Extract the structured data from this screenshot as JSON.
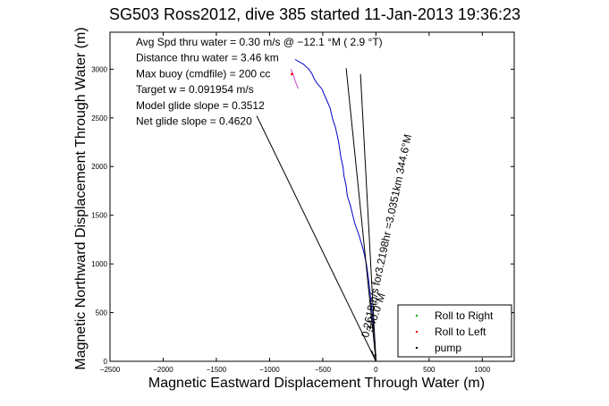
{
  "chart_data": {
    "type": "line",
    "title": "SG503 Ross2012, dive 385 started 11-Jan-2013 19:36:23",
    "xlabel": "Magnetic Eastward Displacement Through Water (m)",
    "ylabel": "Magnetic Northward Displacement Through Water (m)",
    "xlim": [
      -2500,
      1300
    ],
    "ylim": [
      0,
      3380
    ],
    "xticks": [
      -2500,
      -2000,
      -1500,
      -1000,
      -500,
      0,
      500,
      1000
    ],
    "yticks": [
      0,
      500,
      1000,
      1500,
      2000,
      2500,
      3000
    ],
    "grid": false,
    "legend_position": "bottom-right",
    "annotations": [
      "Avg Spd thru water =  0.30 m/s @ −12.1   °M (  2.9 °T)",
      "Distance thru water =  3.46 km",
      "Max buoy (cmdfile) = 200 cc",
      "Target w = 0.091954 m/s",
      "Model glide slope = 0.3512",
      "Net glide slope = 0.4620"
    ],
    "rotated_labels": [
      "0.2618m/s for3.2198hr =3.0351km   344.6°M",
      "340.0°M"
    ],
    "legend": [
      {
        "name": "Roll to Right",
        "color": "#00b000",
        "marker": "dot"
      },
      {
        "name": "Roll to Left",
        "color": "#ff0000",
        "marker": "dot"
      },
      {
        "name": "pump",
        "color": "#000000",
        "marker": "dot"
      }
    ],
    "series": [
      {
        "kind": "track",
        "color": "#0000cc",
        "x": [
          0,
          -2,
          -5,
          -10,
          -18,
          -28,
          -40,
          -55,
          -70,
          -90,
          -120,
          -160,
          -200,
          -240,
          -270,
          -280,
          -300,
          -310,
          -330,
          -350,
          -380,
          -410,
          -430,
          -470,
          -510,
          -550,
          -580,
          -600,
          -630,
          -680,
          -760
        ],
        "y": [
          0,
          50,
          100,
          200,
          300,
          420,
          550,
          700,
          850,
          1000,
          1150,
          1300,
          1420,
          1600,
          1700,
          1800,
          1900,
          2000,
          2100,
          2250,
          2400,
          2500,
          2600,
          2700,
          2800,
          2850,
          2900,
          2950,
          3000,
          3050,
          3100
        ]
      },
      {
        "kind": "track-pink",
        "color": "#cc44cc",
        "x": [
          -730,
          -760,
          -780,
          -800
        ],
        "y": [
          2800,
          2880,
          2950,
          3000
        ]
      },
      {
        "kind": "line",
        "color": "#000000",
        "x": [
          0,
          -1120
        ],
        "y": [
          0,
          2520
        ]
      },
      {
        "kind": "line",
        "color": "#000000",
        "x": [
          0,
          -280
        ],
        "y": [
          0,
          3010
        ]
      },
      {
        "kind": "line",
        "color": "#000000",
        "x": [
          0,
          -145
        ],
        "y": [
          0,
          2950
        ]
      },
      {
        "kind": "line",
        "color": "#000000",
        "x": [
          0,
          -40
        ],
        "y": [
          0,
          110
        ]
      }
    ],
    "markers": [
      {
        "x": -790,
        "y": 2950,
        "color": "#ff0000"
      },
      {
        "x": -5,
        "y": 60,
        "color": "#000000"
      }
    ]
  }
}
